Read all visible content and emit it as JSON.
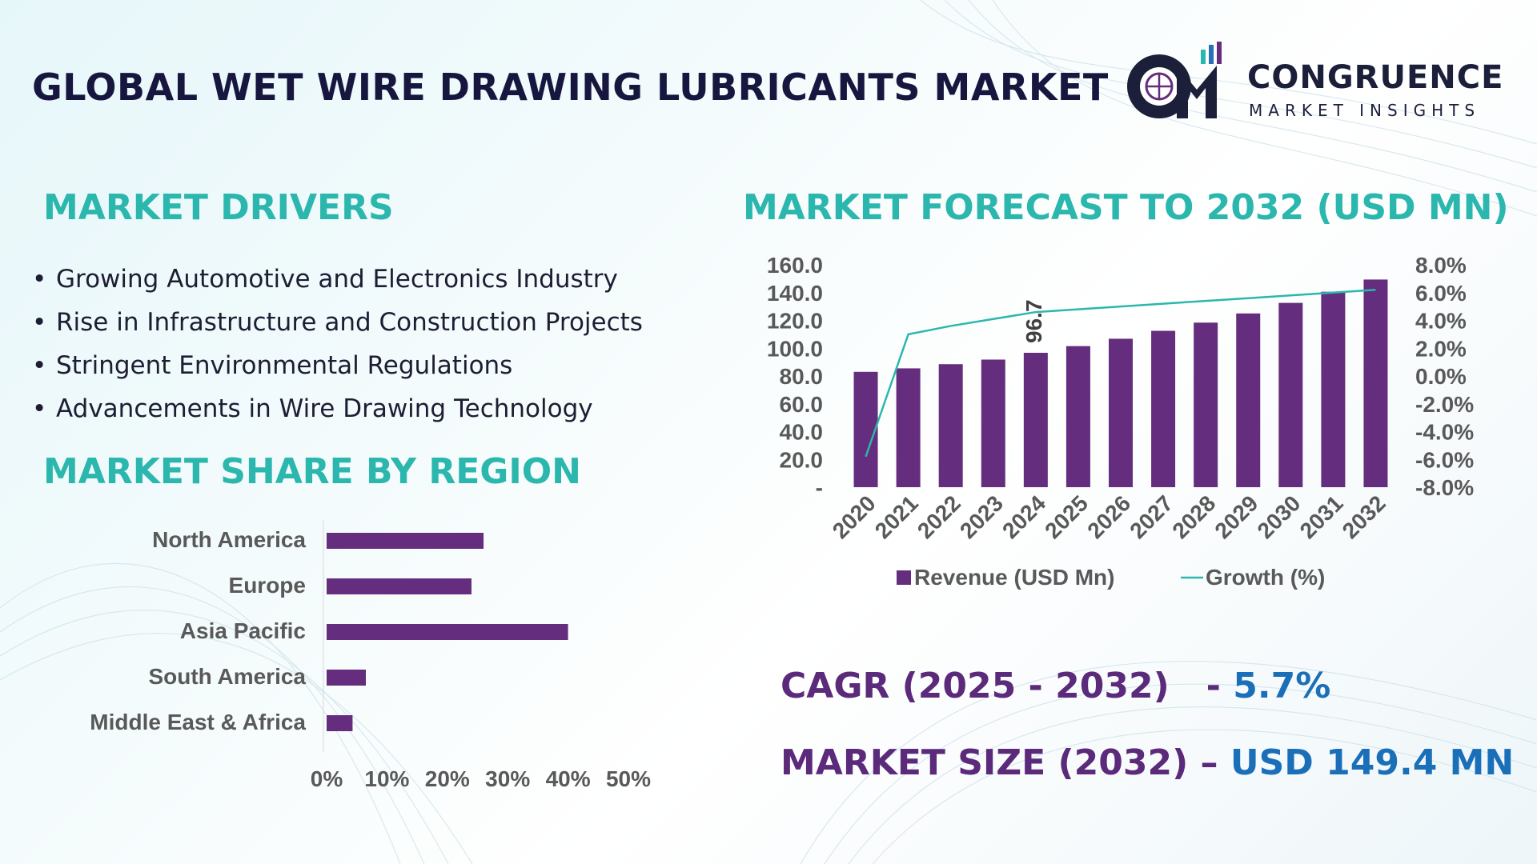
{
  "header": {
    "title": "GLOBAL WET WIRE DRAWING LUBRICANTS MARKET",
    "logo_name": "CONGRUENCE",
    "logo_sub": "MARKET INSIGHTS"
  },
  "drivers": {
    "heading": "MARKET DRIVERS",
    "items": [
      "Growing Automotive and Electronics Industry",
      "Rise in Infrastructure and Construction Projects",
      "Stringent Environmental Regulations",
      "Advancements in Wire Drawing Technology"
    ]
  },
  "region_heading": "MARKET SHARE BY REGION",
  "forecast_heading": "MARKET FORECAST TO 2032 (USD MN)",
  "stats": {
    "cagr_label": "CAGR (2025 - 2032)",
    "cagr_sep": "   - ",
    "cagr_value": "5.7%",
    "size_label": "MARKET SIZE (2032)",
    "size_sep": " – ",
    "size_value": "USD 149.4 MN"
  },
  "colors": {
    "bar": "#652d7d",
    "line": "#2bb7ad",
    "heading": "#2bb7ad",
    "stat_label": "#5b2a7a",
    "stat_value": "#1b6fb8"
  },
  "chart_data": [
    {
      "type": "bar",
      "orientation": "horizontal",
      "categories": [
        "North America",
        "Europe",
        "Asia Pacific",
        "South America",
        "Middle East & Africa"
      ],
      "values": [
        26,
        24,
        40,
        6.5,
        4.3
      ],
      "xlim": [
        0,
        50
      ],
      "xticks": [
        "0%",
        "10%",
        "20%",
        "30%",
        "40%",
        "50%"
      ],
      "grid": false
    },
    {
      "type": "bar+line",
      "categories": [
        "2020",
        "2021",
        "2022",
        "2023",
        "2024",
        "2025",
        "2026",
        "2027",
        "2028",
        "2029",
        "2030",
        "2031",
        "2032"
      ],
      "series": [
        {
          "name": "Revenue (USD Mn)",
          "type": "bar",
          "axis": "left",
          "values": [
            83,
            85.5,
            88.5,
            91.8,
            96.7,
            101.5,
            106.8,
            112.5,
            118.4,
            125.0,
            132.6,
            140.6,
            149.4
          ]
        },
        {
          "name": "Growth (%)",
          "type": "line",
          "axis": "right",
          "values": [
            -5.8,
            3.0,
            3.6,
            4.1,
            4.6,
            4.8,
            5.0,
            5.2,
            5.4,
            5.6,
            5.8,
            6.0,
            6.2
          ]
        }
      ],
      "data_labels": [
        {
          "category": "2024",
          "text": "96.7"
        }
      ],
      "ylim_left": [
        0,
        160
      ],
      "yticks_left": [
        "-",
        "20.0",
        "40.0",
        "60.0",
        "80.0",
        "100.0",
        "120.0",
        "140.0",
        "160.0"
      ],
      "ylim_right": [
        -8,
        8
      ],
      "yticks_right": [
        "-8.0%",
        "-6.0%",
        "-4.0%",
        "-2.0%",
        "0.0%",
        "2.0%",
        "4.0%",
        "6.0%",
        "8.0%"
      ],
      "legend": "bottom",
      "grid": false
    }
  ]
}
